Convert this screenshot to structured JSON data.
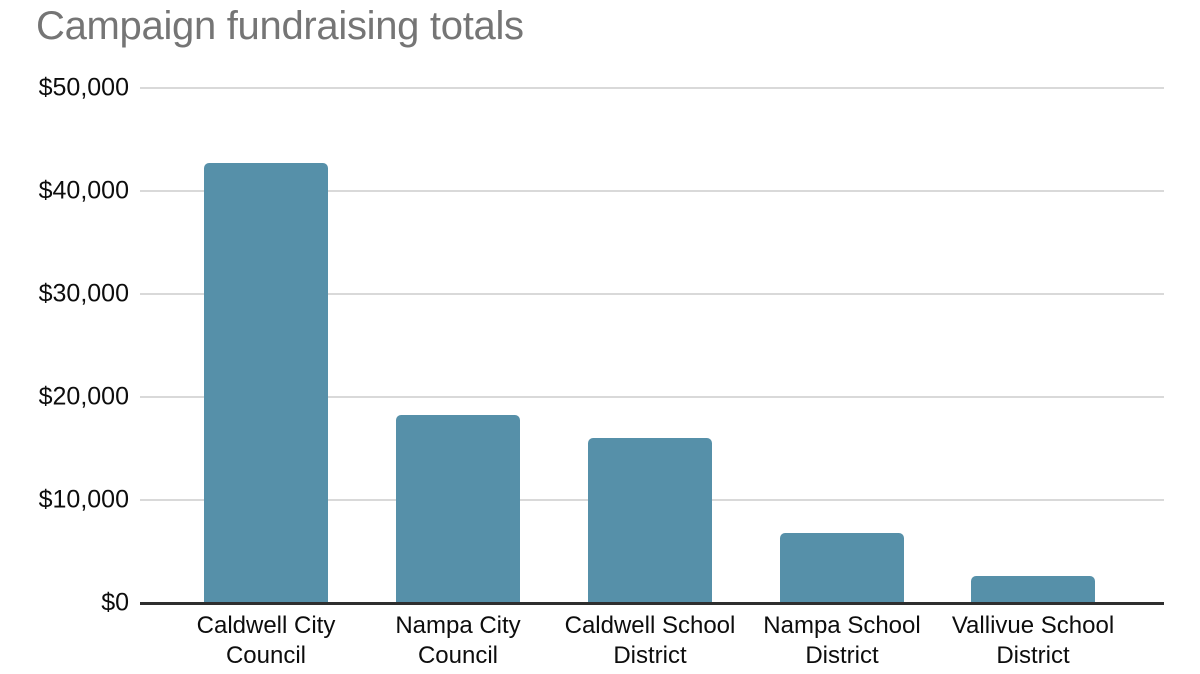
{
  "chart_data": {
    "type": "bar",
    "title": "Campaign fundraising totals",
    "categories": [
      "Caldwell City Council",
      "Nampa City Council",
      "Caldwell School District",
      "Nampa School District",
      "Vallivue School District"
    ],
    "category_lines": [
      [
        "Caldwell City",
        "Council"
      ],
      [
        "Nampa City",
        "Council"
      ],
      [
        "Caldwell School",
        "District"
      ],
      [
        "Nampa School",
        "District"
      ],
      [
        "Vallivue School",
        "District"
      ]
    ],
    "values": [
      42700,
      18300,
      16000,
      6800,
      2600
    ],
    "xlabel": "",
    "ylabel": "",
    "ylim": [
      0,
      50000
    ],
    "yticks": [
      0,
      10000,
      20000,
      30000,
      40000,
      50000
    ],
    "ytick_labels": [
      "$0",
      "$10,000",
      "$20,000",
      "$30,000",
      "$40,000",
      "$50,000"
    ],
    "grid": true,
    "legend": "none",
    "colors": {
      "bar": "#5690a9",
      "gridline": "#d9d9d9",
      "axis_line": "#2e2e2e",
      "title": "#757575",
      "tick_label": "#0d0d0d",
      "category_label": "#0d0d0d",
      "background": "#ffffff"
    }
  }
}
